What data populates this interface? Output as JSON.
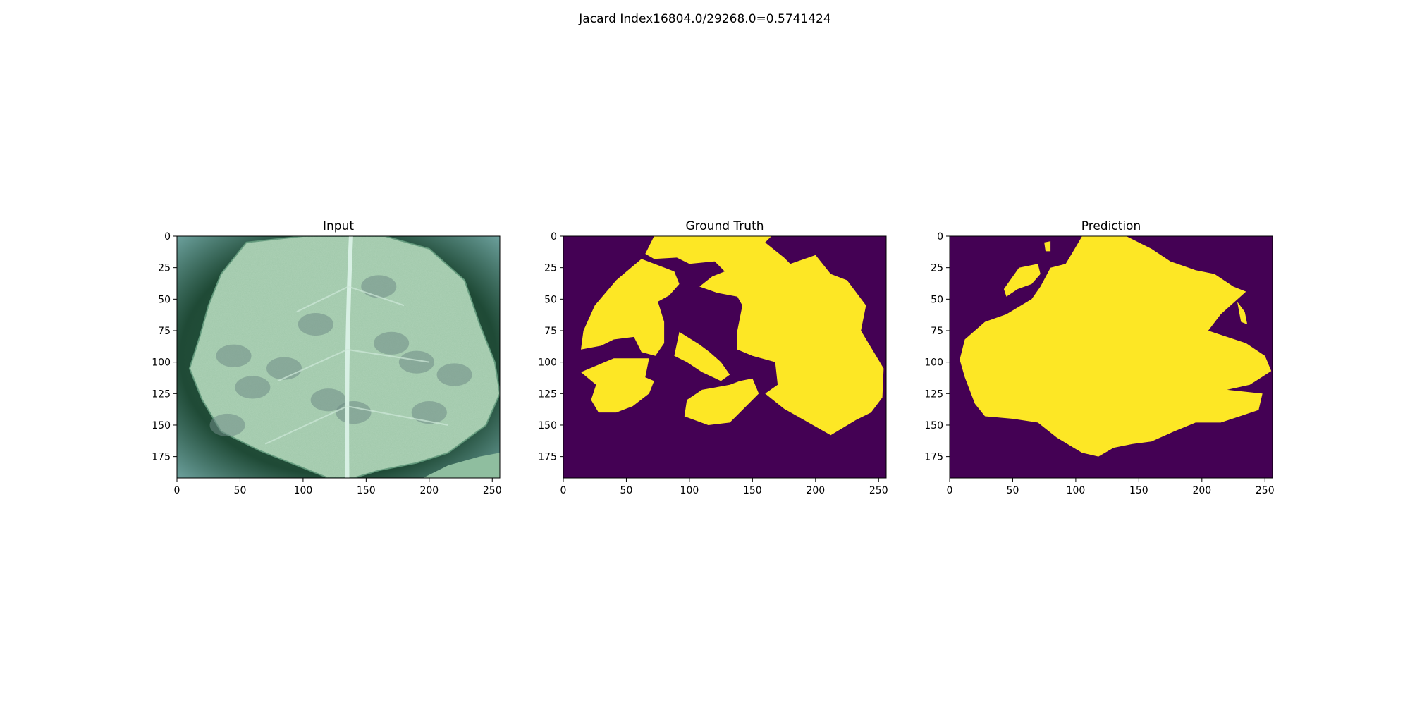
{
  "suptitle": "Jacard Index16804.0/29268.0=0.5741424",
  "colors": {
    "mask_background": "#440154",
    "mask_foreground": "#fde725",
    "leaf_light": "#9fc7a9",
    "leaf_dark": "#2b6a4c",
    "vein": "#d8f0e4",
    "lesion": "#6f8c86"
  },
  "chart_data": [
    {
      "type": "heatmap",
      "title": "Input",
      "xlabel": "",
      "ylabel": "",
      "xlim": [
        0,
        256
      ],
      "ylim": [
        192,
        0
      ],
      "x_ticks": [
        "0",
        "50",
        "100",
        "150",
        "200",
        "250"
      ],
      "y_ticks": [
        "0",
        "25",
        "50",
        "75",
        "100",
        "125",
        "150",
        "175"
      ],
      "image": "RGB photo of a green leaf with gray-green lesion spots and a pale central vein",
      "lesions": [
        [
          45,
          95
        ],
        [
          85,
          105
        ],
        [
          160,
          40
        ],
        [
          170,
          85
        ],
        [
          190,
          100
        ],
        [
          120,
          130
        ],
        [
          60,
          120
        ],
        [
          140,
          140
        ],
        [
          110,
          70
        ],
        [
          200,
          140
        ],
        [
          40,
          150
        ],
        [
          220,
          110
        ]
      ]
    },
    {
      "type": "heatmap",
      "title": "Ground Truth",
      "xlabel": "",
      "ylabel": "",
      "xlim": [
        0,
        256
      ],
      "ylim": [
        192,
        0
      ],
      "x_ticks": [
        "0",
        "50",
        "100",
        "150",
        "200",
        "250"
      ],
      "y_ticks": [
        "0",
        "25",
        "50",
        "75",
        "100",
        "125",
        "150",
        "175"
      ],
      "values_legend": "binary mask (0 = background, 1 = lesion)",
      "regions": [
        [
          [
            72,
            0
          ],
          [
            165,
            0
          ],
          [
            160,
            5
          ],
          [
            175,
            17
          ],
          [
            180,
            22
          ],
          [
            200,
            15
          ],
          [
            212,
            30
          ],
          [
            225,
            35
          ],
          [
            240,
            55
          ],
          [
            236,
            75
          ],
          [
            248,
            95
          ],
          [
            254,
            105
          ],
          [
            253,
            128
          ],
          [
            244,
            140
          ],
          [
            232,
            146
          ],
          [
            212,
            158
          ],
          [
            198,
            150
          ],
          [
            175,
            137
          ],
          [
            160,
            125
          ],
          [
            170,
            118
          ],
          [
            168,
            100
          ],
          [
            150,
            95
          ],
          [
            138,
            90
          ],
          [
            138,
            75
          ],
          [
            142,
            55
          ],
          [
            138,
            48
          ],
          [
            122,
            45
          ],
          [
            108,
            40
          ],
          [
            118,
            32
          ],
          [
            128,
            28
          ],
          [
            120,
            20
          ],
          [
            100,
            22
          ],
          [
            90,
            17
          ],
          [
            72,
            18
          ],
          [
            65,
            14
          ]
        ],
        [
          [
            62,
            18
          ],
          [
            88,
            28
          ],
          [
            92,
            38
          ],
          [
            84,
            47
          ],
          [
            75,
            52
          ],
          [
            80,
            68
          ],
          [
            80,
            85
          ],
          [
            73,
            95
          ],
          [
            62,
            92
          ],
          [
            56,
            80
          ],
          [
            40,
            82
          ],
          [
            30,
            87
          ],
          [
            14,
            90
          ],
          [
            16,
            75
          ],
          [
            25,
            55
          ],
          [
            42,
            35
          ]
        ],
        [
          [
            92,
            76
          ],
          [
            108,
            86
          ],
          [
            116,
            92
          ],
          [
            125,
            100
          ],
          [
            132,
            110
          ],
          [
            125,
            115
          ],
          [
            110,
            108
          ],
          [
            98,
            100
          ],
          [
            88,
            95
          ]
        ],
        [
          [
            40,
            97
          ],
          [
            68,
            97
          ],
          [
            65,
            112
          ],
          [
            72,
            115
          ],
          [
            68,
            125
          ],
          [
            55,
            135
          ],
          [
            42,
            140
          ],
          [
            28,
            140
          ],
          [
            22,
            130
          ],
          [
            26,
            118
          ],
          [
            14,
            108
          ]
        ],
        [
          [
            110,
            122
          ],
          [
            132,
            118
          ],
          [
            140,
            115
          ],
          [
            150,
            113
          ],
          [
            155,
            125
          ],
          [
            140,
            140
          ],
          [
            132,
            148
          ],
          [
            115,
            150
          ],
          [
            96,
            143
          ],
          [
            98,
            130
          ]
        ]
      ]
    },
    {
      "type": "heatmap",
      "title": "Prediction",
      "xlabel": "",
      "ylabel": "",
      "xlim": [
        0,
        256
      ],
      "ylim": [
        192,
        0
      ],
      "x_ticks": [
        "0",
        "50",
        "100",
        "150",
        "200",
        "250"
      ],
      "y_ticks": [
        "0",
        "25",
        "50",
        "75",
        "100",
        "125",
        "150",
        "175"
      ],
      "values_legend": "binary mask (0 = background, 1 = lesion)",
      "regions": [
        [
          [
            105,
            0
          ],
          [
            140,
            0
          ],
          [
            160,
            10
          ],
          [
            175,
            20
          ],
          [
            195,
            27
          ],
          [
            210,
            30
          ],
          [
            225,
            40
          ],
          [
            235,
            44
          ],
          [
            215,
            62
          ],
          [
            205,
            75
          ],
          [
            220,
            80
          ],
          [
            235,
            85
          ],
          [
            250,
            95
          ],
          [
            255,
            107
          ],
          [
            238,
            118
          ],
          [
            220,
            122
          ],
          [
            248,
            125
          ],
          [
            245,
            138
          ],
          [
            230,
            143
          ],
          [
            215,
            148
          ],
          [
            195,
            148
          ],
          [
            178,
            155
          ],
          [
            160,
            163
          ],
          [
            145,
            165
          ],
          [
            130,
            168
          ],
          [
            118,
            175
          ],
          [
            105,
            172
          ],
          [
            85,
            160
          ],
          [
            70,
            148
          ],
          [
            50,
            145
          ],
          [
            28,
            143
          ],
          [
            20,
            133
          ],
          [
            12,
            112
          ],
          [
            8,
            98
          ],
          [
            12,
            82
          ],
          [
            28,
            68
          ],
          [
            45,
            62
          ],
          [
            65,
            50
          ],
          [
            72,
            40
          ],
          [
            80,
            25
          ],
          [
            92,
            22
          ],
          [
            98,
            12
          ]
        ],
        [
          [
            55,
            25
          ],
          [
            70,
            22
          ],
          [
            72,
            30
          ],
          [
            65,
            38
          ],
          [
            54,
            42
          ],
          [
            45,
            48
          ],
          [
            43,
            42
          ]
        ],
        [
          [
            228,
            52
          ],
          [
            234,
            60
          ],
          [
            236,
            70
          ],
          [
            231,
            68
          ]
        ],
        [
          [
            75,
            5
          ],
          [
            80,
            4
          ],
          [
            80,
            12
          ],
          [
            76,
            12
          ]
        ]
      ]
    }
  ]
}
